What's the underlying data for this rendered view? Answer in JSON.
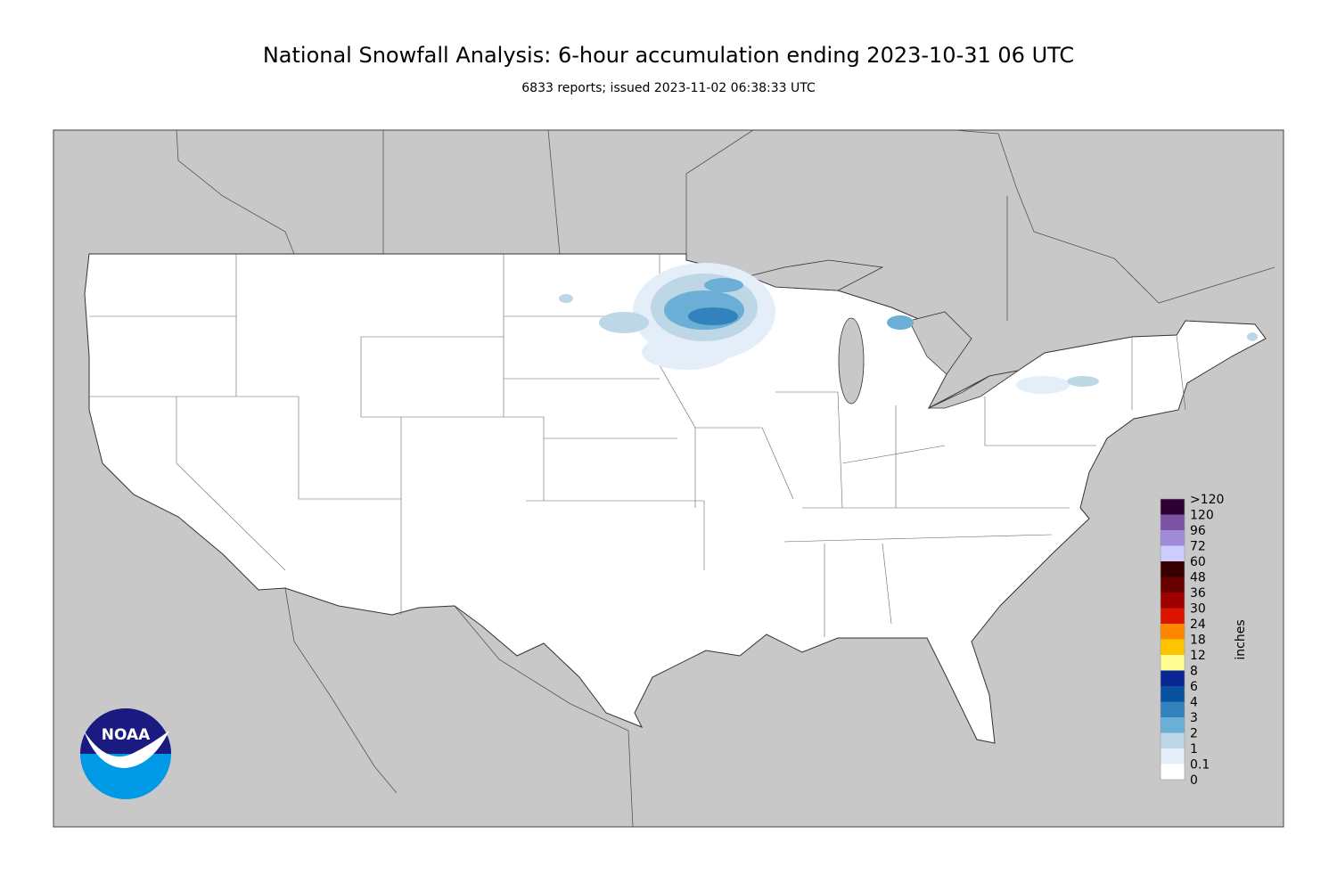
{
  "header": {
    "title": "National Snowfall Analysis: 6-hour accumulation ending 2023-10-31 06 UTC",
    "subtitle": "6833 reports; issued 2023-11-02 06:38:33 UTC"
  },
  "legend": {
    "unit": "inches",
    "labels": [
      0,
      0.1,
      1,
      2,
      3,
      4,
      6,
      8,
      12,
      18,
      24,
      30,
      36,
      48,
      60,
      72,
      96,
      120,
      ">120"
    ],
    "colors": [
      "#ffffff",
      "#e4eef9",
      "#bdd7e7",
      "#6baed6",
      "#3182bd",
      "#08519c",
      "#082694",
      "#ffff96",
      "#ffc400",
      "#ff8700",
      "#db1400",
      "#9e0000",
      "#690000",
      "#360000",
      "#ccccff",
      "#9f8cd8",
      "#7c52a5",
      "#561c72",
      "#2e0033"
    ]
  },
  "logo": {
    "text": "NOAA"
  }
}
